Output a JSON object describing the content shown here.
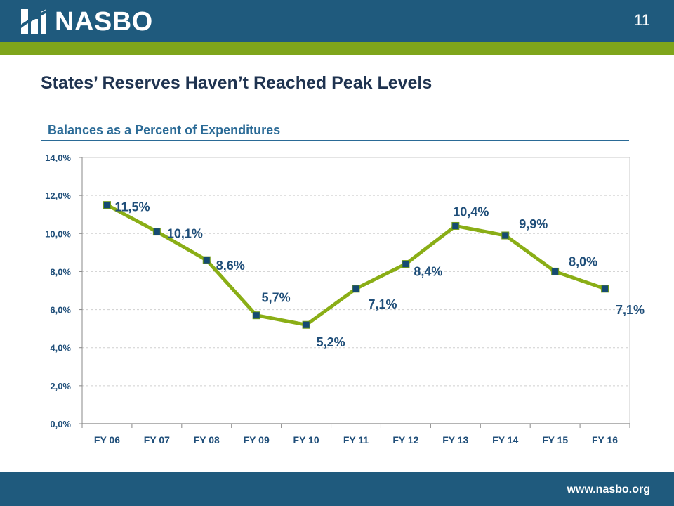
{
  "header": {
    "logo_text": "NASBO",
    "page_number": "11"
  },
  "slide_title": "States’ Reserves Haven’t Reached Peak Levels",
  "footer": {
    "url": "www.nasbo.org"
  },
  "colors": {
    "header_blue": "#1f5a7d",
    "stripe_green": "#7fa51b",
    "line_green": "#8aae16",
    "marker_blue": "#154a72"
  },
  "chart_data": {
    "type": "line",
    "title": "Balances as a Percent of Expenditures",
    "categories": [
      "FY 06",
      "FY 07",
      "FY 08",
      "FY 09",
      "FY 10",
      "FY 11",
      "FY 12",
      "FY 13",
      "FY 14",
      "FY 15",
      "FY 16"
    ],
    "series": [
      {
        "values": [
          11.5,
          10.1,
          8.6,
          5.7,
          5.2,
          7.1,
          8.4,
          10.4,
          9.9,
          8.0,
          7.1
        ],
        "labels": [
          "11,5%",
          "10,1%",
          "8,6%",
          "5,7%",
          "5,2%",
          "7,1%",
          "8,4%",
          "10,4%",
          "9,9%",
          "8,0%",
          "7,1%"
        ]
      }
    ],
    "yticks": [
      "0,0%",
      "2,0%",
      "4,0%",
      "6,0%",
      "8,0%",
      "10,0%",
      "12,0%",
      "14,0%"
    ],
    "ylim": [
      0,
      14
    ],
    "grid": true,
    "legend": "none"
  }
}
